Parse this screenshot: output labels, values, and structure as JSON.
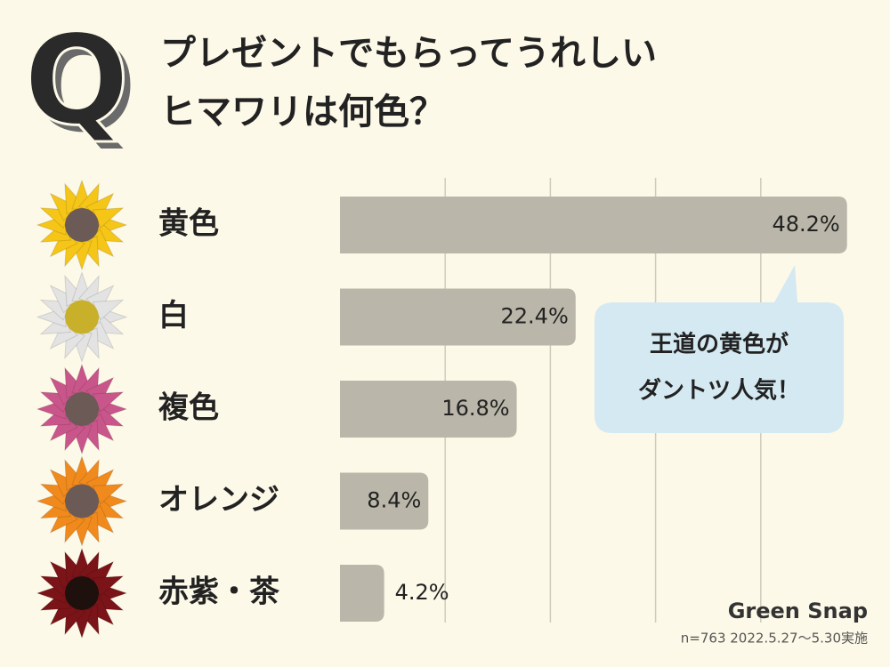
{
  "chart_data": {
    "type": "hbar",
    "q_mark": "Q",
    "title": [
      "プレゼントでもらってうれしい",
      "ヒマワリは何色？"
    ],
    "categories": [
      "黄色",
      "白",
      "複色",
      "オレンジ",
      "赤紫・茶"
    ],
    "values": [
      48.2,
      22.4,
      16.8,
      8.4,
      4.2
    ],
    "value_labels": [
      "48.2%",
      "22.4%",
      "16.8%",
      "8.4%",
      "4.2%"
    ],
    "color": "#bab6a9",
    "xlim": [
      0,
      50
    ],
    "xticks": [
      10,
      20,
      30,
      40
    ],
    "grid": true,
    "icons": [
      {
        "petal": "#f5c518",
        "center": "#6b5a55"
      },
      {
        "petal": "#e3e3e3",
        "center": "#c9b02a"
      },
      {
        "petal": "#c9568a",
        "center": "#6b5a55"
      },
      {
        "petal": "#f08a1c",
        "center": "#6b5a55"
      },
      {
        "petal": "#7a1418",
        "center": "#1e100c"
      }
    ],
    "annotation": [
      "王道の黄色が",
      "ダントツ人気！"
    ],
    "brand": "Green Snap",
    "footnote": "n=763  2022.5.27〜5.30実施"
  }
}
